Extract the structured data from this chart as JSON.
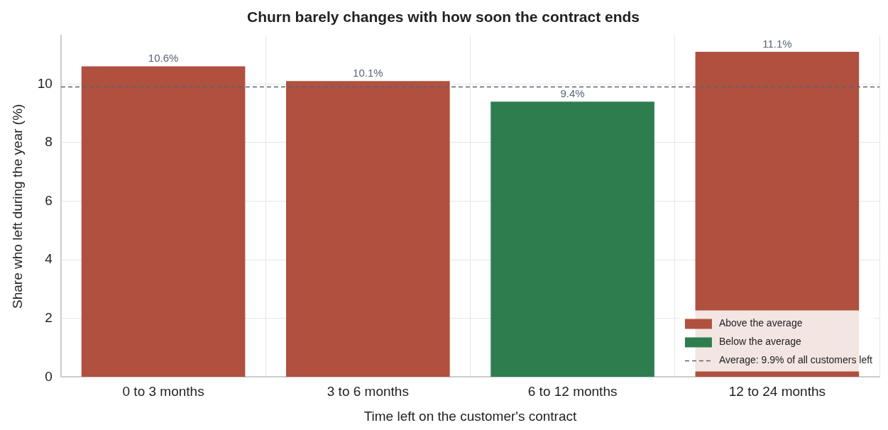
{
  "chart_data": {
    "type": "bar",
    "title": "Churn barely changes with how soon the contract ends",
    "xlabel": "Time left on the customer's contract",
    "ylabel": "Share who left during the year (%)",
    "categories": [
      "0 to 3 months",
      "3 to 6 months",
      "6 to 12 months",
      "12 to 24 months"
    ],
    "series": [
      {
        "name": "Above the average",
        "color": "#b0503e",
        "values": [
          10.6,
          10.1,
          null,
          11.1
        ],
        "value_labels": [
          "10.6%",
          "10.1%",
          null,
          "11.1%"
        ]
      },
      {
        "name": "Below the average",
        "color": "#2e7d4f",
        "values": [
          null,
          null,
          9.4,
          null
        ],
        "value_labels": [
          null,
          null,
          "9.4%",
          null
        ]
      }
    ],
    "stacked": true,
    "ylim": [
      0,
      11.65
    ],
    "yticks": [
      0,
      2,
      4,
      6,
      8,
      10
    ],
    "grid": true,
    "legend": "bottom right",
    "ref_lines": [
      {
        "axis": "y",
        "value": 9.9,
        "label": "Average: 9.9% of all customers left",
        "color": "#5a6275",
        "line_style": "dashed"
      }
    ]
  }
}
